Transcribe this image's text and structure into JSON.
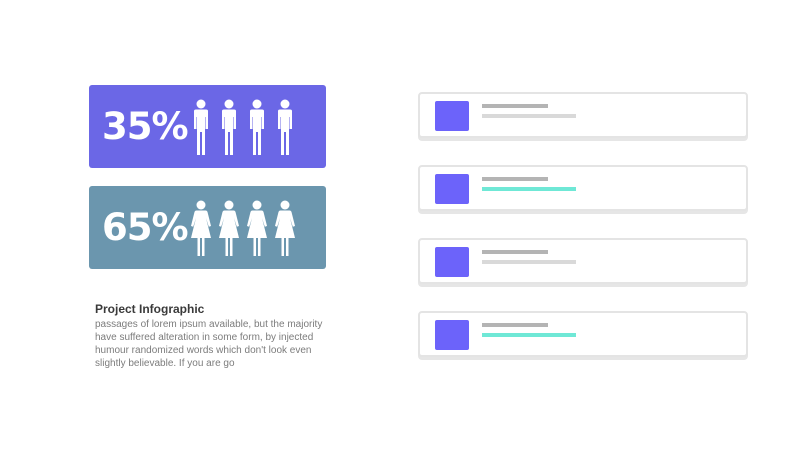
{
  "stats": {
    "male": {
      "percent": "35%",
      "icon": "male-person-icon",
      "figure_count": 4,
      "card_color": "#6b67e6"
    },
    "female": {
      "percent": "65%",
      "icon": "female-person-icon",
      "figure_count": 4,
      "card_color": "#6b96ae"
    }
  },
  "description": {
    "title": "Project Infographic",
    "body": "passages of lorem ipsum available, but the majority have suffered alteration in some form, by injected humour randomized words which don't look even slightly believable. If you are go"
  },
  "list_items": [
    {
      "square_color": "#6c63fa",
      "line_color": "#d9d9d9"
    },
    {
      "square_color": "#6c63fa",
      "line_color": "#6fe8d6"
    },
    {
      "square_color": "#6c63fa",
      "line_color": "#d9d9d9"
    },
    {
      "square_color": "#6c63fa",
      "line_color": "#6fe8d6"
    }
  ]
}
